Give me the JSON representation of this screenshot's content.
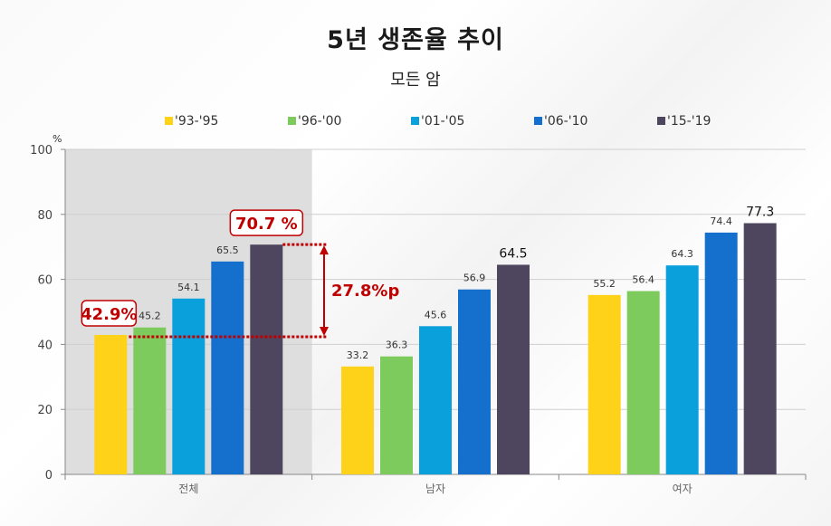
{
  "chart_data": {
    "type": "bar",
    "title": "5년 생존율 추이",
    "subtitle": "모든 암",
    "ylabel": "%",
    "ylim": [
      0,
      100
    ],
    "yticks": [
      0,
      20,
      40,
      60,
      80,
      100
    ],
    "grid": true,
    "legend_position": "top",
    "categories": [
      "전체",
      "남자",
      "여자"
    ],
    "highlighted_category": "전체",
    "series": [
      {
        "name": "'93-'95",
        "color": "#FFD21A",
        "values": [
          42.9,
          33.2,
          55.2
        ]
      },
      {
        "name": "'96-'00",
        "color": "#7DCB5C",
        "values": [
          45.2,
          36.3,
          56.4
        ]
      },
      {
        "name": "'01-'05",
        "color": "#0AA0DB",
        "values": [
          54.1,
          45.6,
          64.3
        ]
      },
      {
        "name": "'06-'10",
        "color": "#1470CC",
        "values": [
          65.5,
          56.9,
          74.4
        ]
      },
      {
        "name": "'15-'19",
        "color": "#4E465E",
        "values": [
          70.7,
          64.5,
          77.3
        ]
      }
    ],
    "annotations": {
      "first_value_label": "42.9%",
      "last_value_label": "70.7 %",
      "difference_label": "27.8%p",
      "accent_color": "#C00000"
    }
  }
}
